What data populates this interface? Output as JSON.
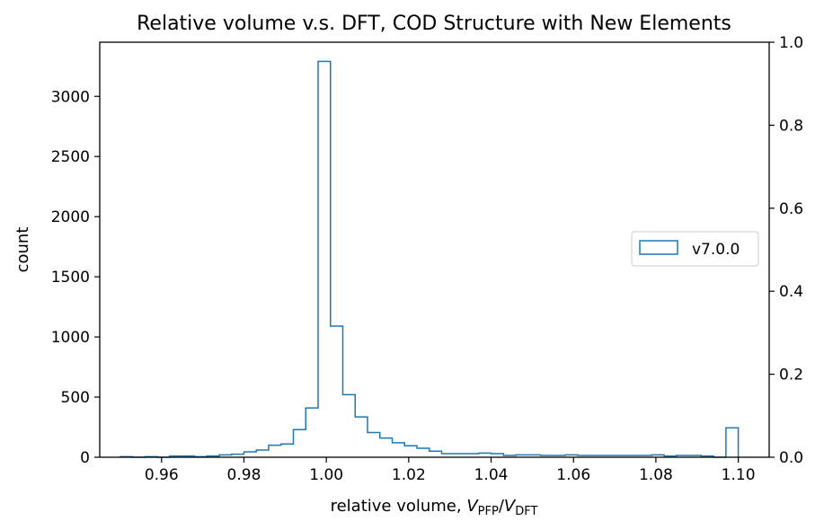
{
  "chart_data": {
    "type": "histogram",
    "title": "Relative volume v.s. DFT, COD Structure with New Elements",
    "xlabel": "relative volume, V_PFP/V_DFT",
    "xlabel_parts": {
      "prefix": "relative volume, ",
      "v1": "V",
      "sub1": "PFP",
      "slash": "/",
      "v2": "V",
      "sub2": "DFT"
    },
    "ylabel": "count",
    "xlim": [
      0.945,
      1.1075
    ],
    "ylim": [
      0,
      3450
    ],
    "y2lim": [
      0,
      1
    ],
    "xticks": [
      0.96,
      0.98,
      1.0,
      1.02,
      1.04,
      1.06,
      1.08,
      1.1
    ],
    "xtick_labels": [
      "0.96",
      "0.98",
      "1.00",
      "1.02",
      "1.04",
      "1.06",
      "1.08",
      "1.10"
    ],
    "yticks": [
      0,
      500,
      1000,
      1500,
      2000,
      2500,
      3000
    ],
    "ytick_labels": [
      "0",
      "500",
      "1000",
      "1500",
      "2000",
      "2500",
      "3000"
    ],
    "y2ticks": [
      0,
      0.2,
      0.4,
      0.6,
      0.8,
      1.0
    ],
    "y2tick_labels": [
      "0.0",
      "0.2",
      "0.4",
      "0.6",
      "0.8",
      "1.0"
    ],
    "grid": false,
    "legend_position": "center-right",
    "series": [
      {
        "name": "v7.0.0",
        "color": "#1f77b4",
        "bin_start": 0.95,
        "bin_width": 0.003,
        "counts": [
          5,
          0,
          5,
          0,
          10,
          10,
          5,
          10,
          20,
          25,
          45,
          60,
          100,
          110,
          230,
          410,
          3290,
          1090,
          520,
          335,
          205,
          160,
          120,
          95,
          75,
          50,
          30,
          30,
          30,
          35,
          30,
          15,
          20,
          20,
          15,
          15,
          20,
          15,
          15,
          15,
          15,
          15,
          15,
          20,
          10,
          15,
          15,
          10,
          0,
          245
        ]
      }
    ]
  }
}
